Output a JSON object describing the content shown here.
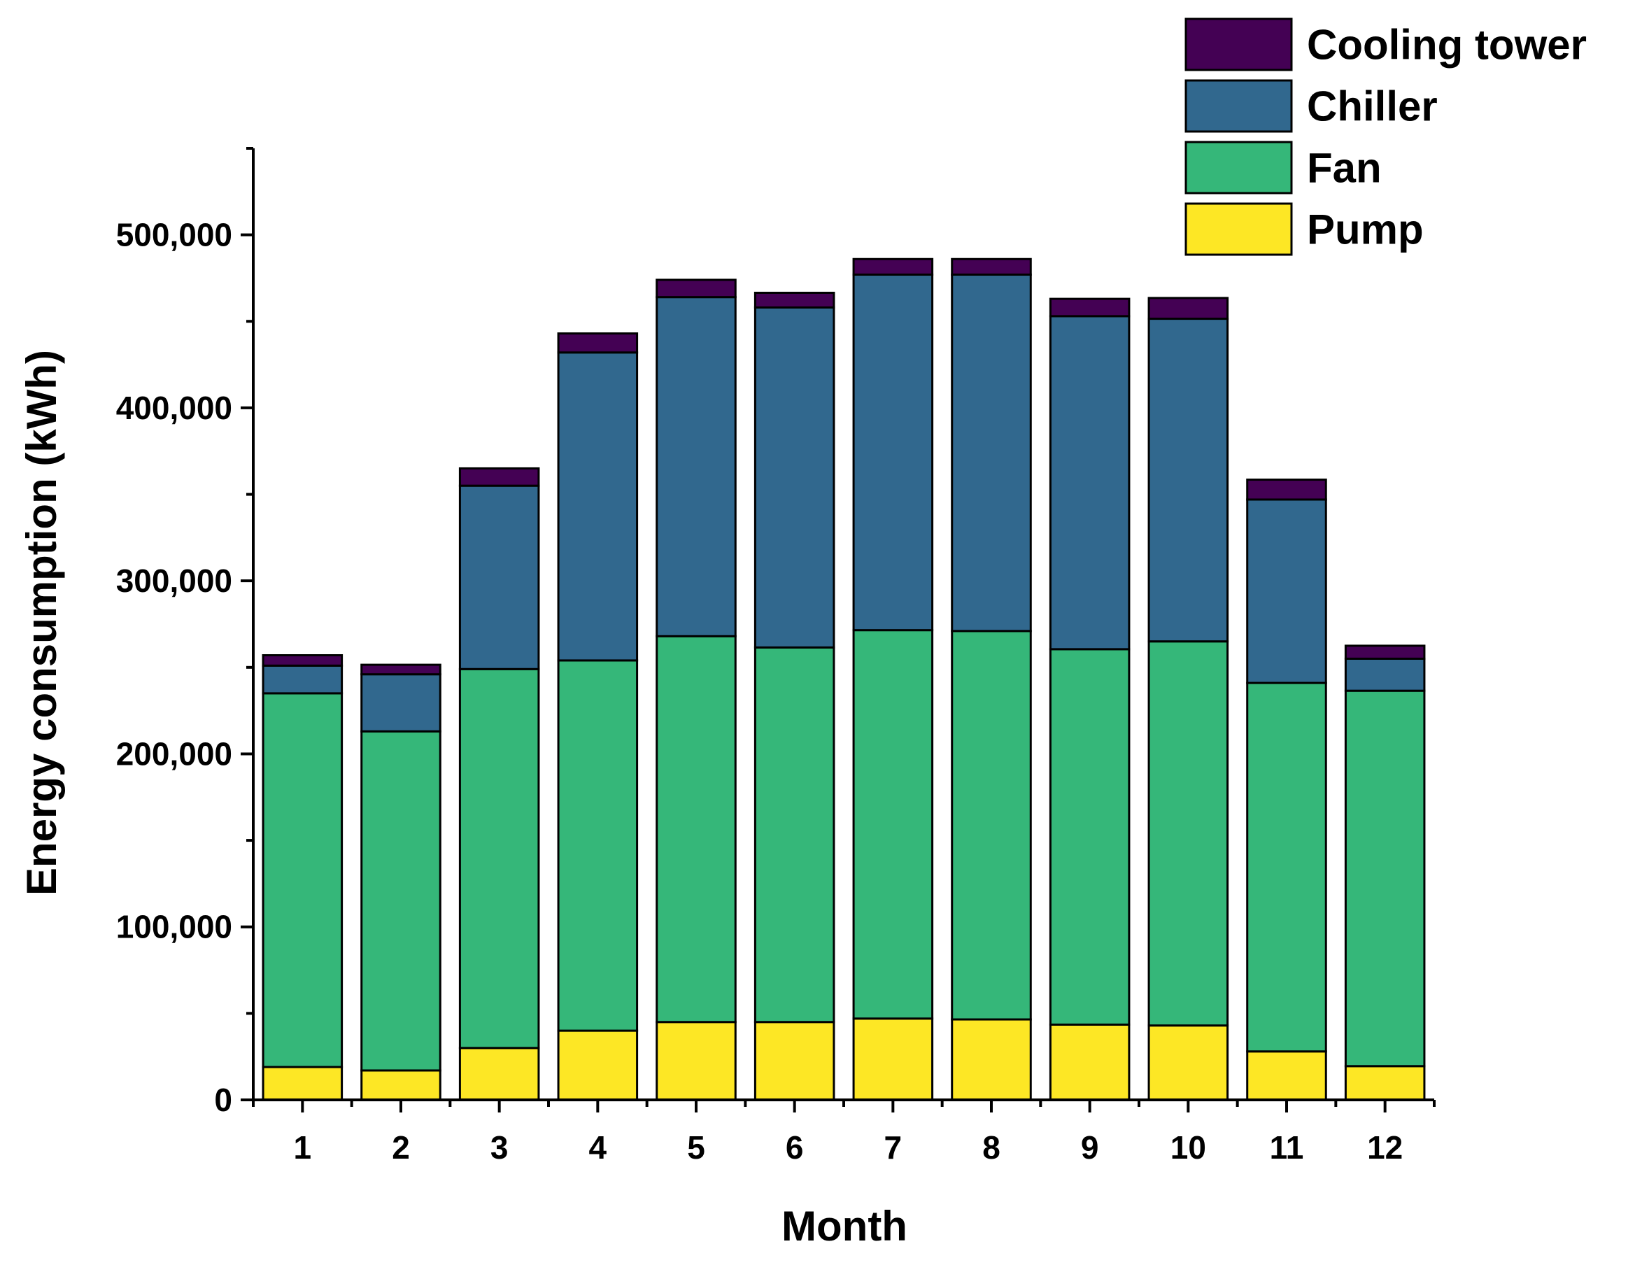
{
  "chart_data": {
    "type": "bar",
    "stacked": true,
    "title": "",
    "xlabel": "Month",
    "ylabel": "Energy consumption (kWh)",
    "categories": [
      "1",
      "2",
      "3",
      "4",
      "5",
      "6",
      "7",
      "8",
      "9",
      "10",
      "11",
      "12"
    ],
    "ylim": [
      0,
      550000
    ],
    "yticks": [
      0,
      100000,
      200000,
      300000,
      400000,
      500000
    ],
    "ytick_labels": [
      "0",
      "100,000",
      "200,000",
      "300,000",
      "400,000",
      "500,000"
    ],
    "legend_position": "top-right",
    "legend_order": [
      "Cooling tower",
      "Chiller",
      "Fan",
      "Pump"
    ],
    "series": [
      {
        "name": "Pump",
        "color": "#fde725",
        "values": [
          19000,
          17000,
          30000,
          40000,
          45000,
          45000,
          47000,
          46500,
          43500,
          43000,
          28000,
          19500
        ]
      },
      {
        "name": "Fan",
        "color": "#35b779",
        "values": [
          216000,
          196000,
          219000,
          214000,
          223000,
          216500,
          224500,
          224500,
          217000,
          222000,
          213000,
          217000
        ]
      },
      {
        "name": "Chiller",
        "color": "#31688e",
        "values": [
          16000,
          33000,
          106000,
          178000,
          196000,
          196500,
          205500,
          206000,
          192500,
          186500,
          106000,
          18500
        ]
      },
      {
        "name": "Cooling tower",
        "color": "#440154",
        "values": [
          6000,
          5500,
          10000,
          11000,
          10000,
          8500,
          9000,
          9000,
          10000,
          12000,
          11500,
          7500
        ]
      }
    ]
  }
}
